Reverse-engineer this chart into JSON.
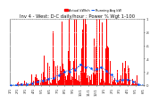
{
  "title": "Inv 4 - West: D-C daily/hour : Power % Wgt 1-100",
  "legend_actual": "Actual kWh/h",
  "legend_avg": "Running Avg kW",
  "bar_color": "#ff0000",
  "avg_color": "#0055ff",
  "avg_dot_color": "#0055ff",
  "background_color": "#ffffff",
  "grid_color": "#aaaaaa",
  "num_bars": 200,
  "ylim_max": 1.0,
  "title_fontsize": 3.8,
  "tick_fontsize": 2.8,
  "legend_fontsize": 2.5,
  "ytick_labels": [
    "1",
    ".8",
    ".6",
    ".4",
    ".2",
    "0"
  ],
  "ytick_vals": [
    1.0,
    0.8,
    0.6,
    0.4,
    0.2,
    0.0
  ]
}
